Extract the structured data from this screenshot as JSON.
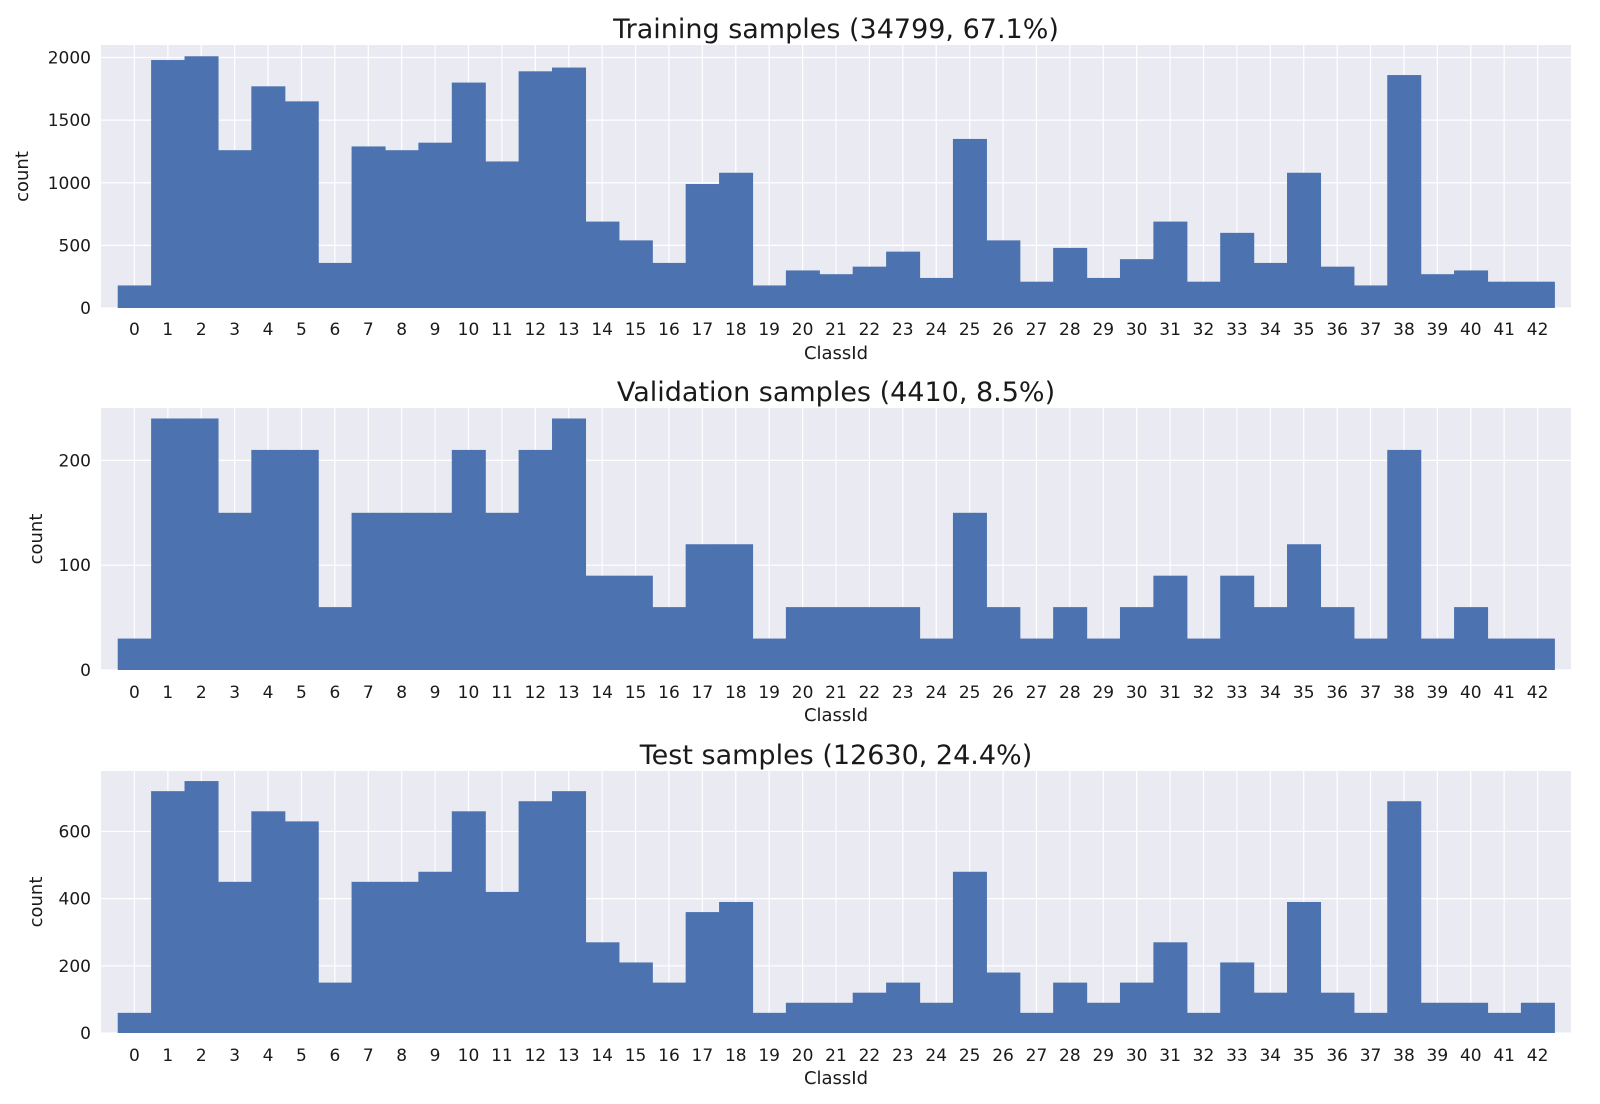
{
  "colors": {
    "bar": "#4c72b0",
    "plot_background": "#eaeaf2",
    "grid": "#ffffff",
    "text": "#1a1a1a"
  },
  "chart_data": [
    {
      "type": "bar",
      "title": "Training samples (34799, 67.1%)",
      "xlabel": "ClassId",
      "ylabel": "count",
      "categories": [
        "0",
        "1",
        "2",
        "3",
        "4",
        "5",
        "6",
        "7",
        "8",
        "9",
        "10",
        "11",
        "12",
        "13",
        "14",
        "15",
        "16",
        "17",
        "18",
        "19",
        "20",
        "21",
        "22",
        "23",
        "24",
        "25",
        "26",
        "27",
        "28",
        "29",
        "30",
        "31",
        "32",
        "33",
        "34",
        "35",
        "36",
        "37",
        "38",
        "39",
        "40",
        "41",
        "42"
      ],
      "values": [
        180,
        1980,
        2010,
        1260,
        1770,
        1650,
        360,
        1290,
        1260,
        1320,
        1800,
        1170,
        1890,
        1920,
        690,
        540,
        360,
        990,
        1080,
        180,
        300,
        270,
        330,
        450,
        240,
        1350,
        540,
        210,
        480,
        240,
        390,
        690,
        210,
        600,
        360,
        1080,
        330,
        180,
        1860,
        270,
        300,
        210,
        210
      ],
      "ylim": [
        0,
        2100
      ],
      "yticks": [
        0,
        500,
        1000,
        1500,
        2000
      ],
      "grid": true
    },
    {
      "type": "bar",
      "title": "Validation samples (4410, 8.5%)",
      "xlabel": "ClassId",
      "ylabel": "count",
      "categories": [
        "0",
        "1",
        "2",
        "3",
        "4",
        "5",
        "6",
        "7",
        "8",
        "9",
        "10",
        "11",
        "12",
        "13",
        "14",
        "15",
        "16",
        "17",
        "18",
        "19",
        "20",
        "21",
        "22",
        "23",
        "24",
        "25",
        "26",
        "27",
        "28",
        "29",
        "30",
        "31",
        "32",
        "33",
        "34",
        "35",
        "36",
        "37",
        "38",
        "39",
        "40",
        "41",
        "42"
      ],
      "values": [
        30,
        240,
        240,
        150,
        210,
        210,
        60,
        150,
        150,
        150,
        210,
        150,
        210,
        240,
        90,
        90,
        60,
        120,
        120,
        30,
        60,
        60,
        60,
        60,
        30,
        150,
        60,
        30,
        60,
        30,
        60,
        90,
        30,
        90,
        60,
        120,
        60,
        30,
        210,
        30,
        60,
        30,
        30
      ],
      "ylim": [
        0,
        250
      ],
      "yticks": [
        0,
        100,
        200
      ],
      "grid": true
    },
    {
      "type": "bar",
      "title": "Test samples (12630, 24.4%)",
      "xlabel": "ClassId",
      "ylabel": "count",
      "categories": [
        "0",
        "1",
        "2",
        "3",
        "4",
        "5",
        "6",
        "7",
        "8",
        "9",
        "10",
        "11",
        "12",
        "13",
        "14",
        "15",
        "16",
        "17",
        "18",
        "19",
        "20",
        "21",
        "22",
        "23",
        "24",
        "25",
        "26",
        "27",
        "28",
        "29",
        "30",
        "31",
        "32",
        "33",
        "34",
        "35",
        "36",
        "37",
        "38",
        "39",
        "40",
        "41",
        "42"
      ],
      "values": [
        60,
        720,
        750,
        450,
        660,
        630,
        150,
        450,
        450,
        480,
        660,
        420,
        690,
        720,
        270,
        210,
        150,
        360,
        390,
        60,
        90,
        90,
        120,
        150,
        90,
        480,
        180,
        60,
        150,
        90,
        150,
        270,
        60,
        210,
        120,
        390,
        120,
        60,
        690,
        90,
        90,
        60,
        90
      ],
      "ylim": [
        0,
        780
      ],
      "yticks": [
        0,
        200,
        400,
        600
      ],
      "grid": true
    }
  ]
}
